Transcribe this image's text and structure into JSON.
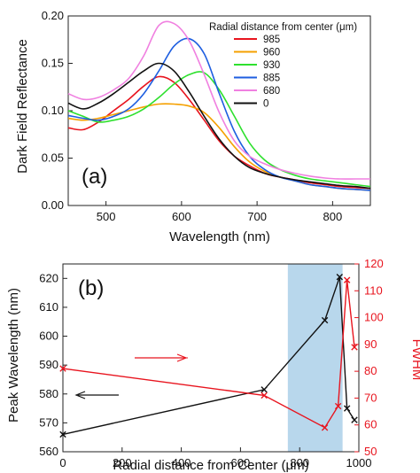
{
  "chart_data": [
    {
      "panel_label": "(a)",
      "type": "line",
      "xlabel": "Wavelength (nm)",
      "ylabel": "Dark Field Reflectance",
      "xlim": [
        450,
        850
      ],
      "ylim": [
        0.0,
        0.2
      ],
      "xticks": [
        "500",
        "600",
        "700",
        "800"
      ],
      "yticks": [
        "0.00",
        "0.05",
        "0.10",
        "0.15",
        "0.20"
      ],
      "legend_title": "Radial distance from center (μm)",
      "legend_position": "top-right",
      "series": [
        {
          "name": "985",
          "color": "#e8141e",
          "x": [
            450,
            470,
            490,
            510,
            530,
            550,
            570,
            590,
            610,
            630,
            650,
            670,
            690,
            710,
            730,
            750,
            770,
            790,
            810,
            830,
            850
          ],
          "y": [
            0.082,
            0.08,
            0.088,
            0.1,
            0.112,
            0.126,
            0.136,
            0.13,
            0.112,
            0.09,
            0.068,
            0.052,
            0.042,
            0.034,
            0.03,
            0.027,
            0.024,
            0.022,
            0.02,
            0.019,
            0.018
          ]
        },
        {
          "name": "960",
          "color": "#f5a000",
          "x": [
            450,
            470,
            490,
            510,
            530,
            550,
            570,
            590,
            610,
            630,
            650,
            670,
            690,
            710,
            730,
            750,
            770,
            790,
            810,
            830,
            850
          ],
          "y": [
            0.092,
            0.09,
            0.092,
            0.096,
            0.1,
            0.104,
            0.107,
            0.107,
            0.105,
            0.098,
            0.082,
            0.062,
            0.046,
            0.036,
            0.03,
            0.026,
            0.022,
            0.02,
            0.018,
            0.017,
            0.016
          ]
        },
        {
          "name": "930",
          "color": "#2ee02e",
          "x": [
            450,
            470,
            490,
            510,
            530,
            550,
            570,
            590,
            610,
            630,
            650,
            670,
            690,
            710,
            730,
            750,
            770,
            790,
            810,
            830,
            850
          ],
          "y": [
            0.1,
            0.094,
            0.088,
            0.09,
            0.094,
            0.102,
            0.114,
            0.128,
            0.138,
            0.14,
            0.122,
            0.094,
            0.066,
            0.048,
            0.038,
            0.032,
            0.028,
            0.026,
            0.024,
            0.022,
            0.02
          ]
        },
        {
          "name": "885",
          "color": "#1e5ee0",
          "x": [
            450,
            470,
            490,
            510,
            530,
            550,
            570,
            590,
            610,
            630,
            650,
            670,
            690,
            710,
            730,
            750,
            770,
            790,
            810,
            830,
            850
          ],
          "y": [
            0.095,
            0.092,
            0.09,
            0.094,
            0.102,
            0.118,
            0.142,
            0.168,
            0.176,
            0.16,
            0.118,
            0.078,
            0.052,
            0.038,
            0.03,
            0.026,
            0.022,
            0.02,
            0.018,
            0.017,
            0.016
          ]
        },
        {
          "name": "680",
          "color": "#f080e0",
          "x": [
            450,
            470,
            490,
            510,
            530,
            550,
            570,
            590,
            610,
            630,
            650,
            670,
            690,
            710,
            730,
            750,
            770,
            790,
            810,
            830,
            850
          ],
          "y": [
            0.118,
            0.112,
            0.114,
            0.122,
            0.134,
            0.158,
            0.19,
            0.192,
            0.174,
            0.138,
            0.098,
            0.068,
            0.052,
            0.044,
            0.038,
            0.034,
            0.031,
            0.029,
            0.028,
            0.028,
            0.028
          ]
        },
        {
          "name": "0",
          "color": "#111111",
          "x": [
            450,
            470,
            490,
            510,
            530,
            550,
            570,
            590,
            610,
            630,
            650,
            670,
            690,
            710,
            730,
            750,
            770,
            790,
            810,
            830,
            850
          ],
          "y": [
            0.108,
            0.102,
            0.108,
            0.118,
            0.13,
            0.142,
            0.15,
            0.142,
            0.12,
            0.094,
            0.07,
            0.052,
            0.04,
            0.034,
            0.03,
            0.027,
            0.025,
            0.023,
            0.021,
            0.02,
            0.018
          ]
        }
      ]
    },
    {
      "panel_label": "(b)",
      "type": "line",
      "xlabel": "Radial distance from Center (μm)",
      "ylabel": "Peak Wavelength (nm)",
      "y2label": "FWHM",
      "xlim": [
        0,
        1000
      ],
      "ylim": [
        560,
        625
      ],
      "y2lim": [
        50,
        120
      ],
      "xticks": [
        "0",
        "200",
        "400",
        "600",
        "800",
        "1000"
      ],
      "yticks": [
        "560",
        "570",
        "580",
        "590",
        "600",
        "610",
        "620"
      ],
      "y2ticks": [
        "50",
        "60",
        "70",
        "80",
        "90",
        "100",
        "110",
        "120"
      ],
      "shaded_region": {
        "x": [
          760,
          945
        ],
        "color": "#b8d7ec"
      },
      "series": [
        {
          "name": "",
          "axis": "left",
          "color": "#111111",
          "x": [
            0,
            680,
            885,
            935,
            960,
            985
          ],
          "y": [
            566,
            581.5,
            605.5,
            620.5,
            575,
            571
          ]
        },
        {
          "name": "",
          "axis": "right",
          "color": "#e8141e",
          "x": [
            0,
            680,
            885,
            930,
            960,
            985
          ],
          "y": [
            81,
            71,
            59,
            67,
            114,
            89
          ]
        }
      ]
    }
  ]
}
